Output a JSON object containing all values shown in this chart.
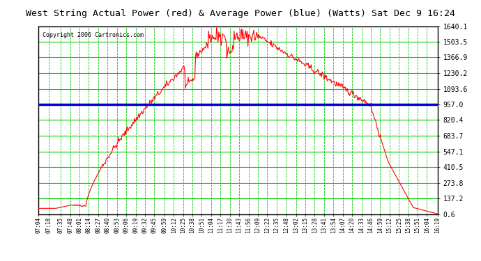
{
  "title": "West String Actual Power (red) & Average Power (blue) (Watts) Sat Dec 9 16:24",
  "copyright": "Copyright 2006 Cartronics.com",
  "avg_power": 957.0,
  "y_ticks": [
    0.6,
    137.2,
    273.8,
    410.5,
    547.1,
    683.7,
    820.4,
    957.0,
    1093.6,
    1230.2,
    1366.9,
    1503.5,
    1640.1
  ],
  "bg_color": "#ffffff",
  "plot_bg_color": "#ffffff",
  "grid_color_h": "#00cc00",
  "grid_color_v": "#00cc00",
  "line_color": "#ff0000",
  "avg_color": "#0000cc",
  "x_labels": [
    "07:04",
    "07:18",
    "07:35",
    "07:48",
    "08:01",
    "08:14",
    "08:27",
    "08:40",
    "08:53",
    "09:06",
    "09:19",
    "09:32",
    "09:45",
    "09:59",
    "10:12",
    "10:25",
    "10:38",
    "10:51",
    "11:04",
    "11:17",
    "11:30",
    "11:43",
    "11:56",
    "12:09",
    "12:22",
    "12:35",
    "12:48",
    "13:02",
    "13:15",
    "13:28",
    "13:41",
    "13:54",
    "14:07",
    "14:20",
    "14:33",
    "14:46",
    "14:59",
    "15:12",
    "15:25",
    "15:38",
    "15:51",
    "16:04",
    "16:19"
  ]
}
